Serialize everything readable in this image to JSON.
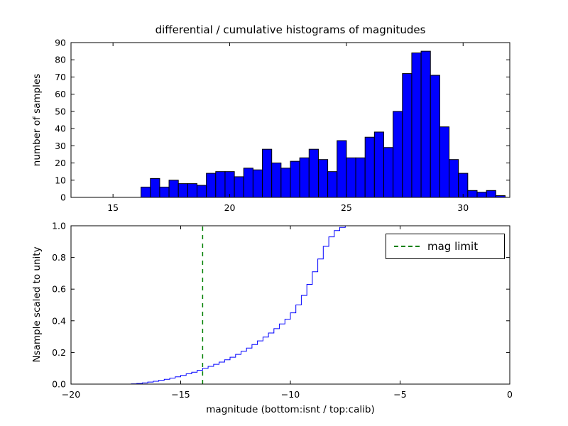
{
  "figure_title": "differential / cumulative histograms of magnitudes",
  "axes": {
    "top": {
      "ylabel": "number of samples"
    },
    "bottom": {
      "ylabel": "Nsample scaled to unity",
      "xlabel": "magnitude (bottom:isnt / top:calib)"
    }
  },
  "legend": {
    "entries": [
      {
        "label": "mag limit",
        "style": "dashed",
        "color": "#008000"
      }
    ]
  },
  "style": {
    "bar_fill": "#0000ff",
    "bar_edge": "#000000",
    "step_line_color": "#0000ff",
    "vline_color": "#008000",
    "axis_color": "#000000",
    "background": "#ffffff"
  },
  "chart_data": [
    {
      "type": "bar",
      "role": "differential-histogram-top-calib",
      "bin_start": 16.2,
      "bin_width": 0.4,
      "values": [
        6,
        11,
        6,
        10,
        8,
        8,
        7,
        14,
        15,
        15,
        12,
        17,
        16,
        28,
        20,
        17,
        21,
        23,
        28,
        22,
        15,
        33,
        23,
        23,
        35,
        38,
        29,
        50,
        72,
        84,
        85,
        71,
        41,
        22,
        14,
        4,
        3,
        4,
        1
      ],
      "xlim": [
        13.2,
        32.0
      ],
      "ylim": [
        0,
        90
      ],
      "xticks": [
        15,
        20,
        25,
        30
      ],
      "xtick_labels": [
        "15",
        "20",
        "25",
        "30"
      ],
      "yticks": [
        0,
        10,
        20,
        30,
        40,
        50,
        60,
        70,
        80,
        90
      ],
      "ytick_labels": [
        "0",
        "10",
        "20",
        "30",
        "40",
        "50",
        "60",
        "70",
        "80",
        "90"
      ],
      "grid": false
    },
    {
      "type": "step",
      "role": "cumulative-histogram-bottom-isnt",
      "points": [
        [
          -18.6,
          0.0
        ],
        [
          -17.25,
          0.002
        ],
        [
          -17.0,
          0.004
        ],
        [
          -16.75,
          0.008
        ],
        [
          -16.5,
          0.013
        ],
        [
          -16.25,
          0.018
        ],
        [
          -16.0,
          0.024
        ],
        [
          -15.75,
          0.03
        ],
        [
          -15.5,
          0.038
        ],
        [
          -15.25,
          0.046
        ],
        [
          -15.0,
          0.055
        ],
        [
          -14.75,
          0.065
        ],
        [
          -14.5,
          0.075
        ],
        [
          -14.25,
          0.087
        ],
        [
          -14.0,
          0.1
        ],
        [
          -13.75,
          0.112
        ],
        [
          -13.5,
          0.125
        ],
        [
          -13.25,
          0.139
        ],
        [
          -13.0,
          0.154
        ],
        [
          -12.75,
          0.17
        ],
        [
          -12.5,
          0.188
        ],
        [
          -12.25,
          0.207
        ],
        [
          -12.0,
          0.228
        ],
        [
          -11.75,
          0.25
        ],
        [
          -11.5,
          0.273
        ],
        [
          -11.25,
          0.297
        ],
        [
          -11.0,
          0.323
        ],
        [
          -10.75,
          0.35
        ],
        [
          -10.5,
          0.38
        ],
        [
          -10.25,
          0.41
        ],
        [
          -10.0,
          0.45
        ],
        [
          -9.75,
          0.5
        ],
        [
          -9.5,
          0.56
        ],
        [
          -9.25,
          0.63
        ],
        [
          -9.0,
          0.71
        ],
        [
          -8.75,
          0.79
        ],
        [
          -8.5,
          0.87
        ],
        [
          -8.25,
          0.93
        ],
        [
          -8.0,
          0.97
        ],
        [
          -7.75,
          0.99
        ],
        [
          -7.5,
          1.0
        ]
      ],
      "vline": {
        "x": -14,
        "label": "mag limit"
      },
      "xlim": [
        -20,
        0
      ],
      "ylim": [
        0,
        1.0
      ],
      "xticks": [
        -20,
        -15,
        -10,
        -5,
        0
      ],
      "xtick_labels": [
        "−20",
        "−15",
        "−10",
        "−5",
        "0"
      ],
      "yticks": [
        0.0,
        0.2,
        0.4,
        0.6,
        0.8,
        1.0
      ],
      "ytick_labels": [
        "0.0",
        "0.2",
        "0.4",
        "0.6",
        "0.8",
        "1.0"
      ],
      "grid": false,
      "legend_position": "upper right"
    }
  ]
}
